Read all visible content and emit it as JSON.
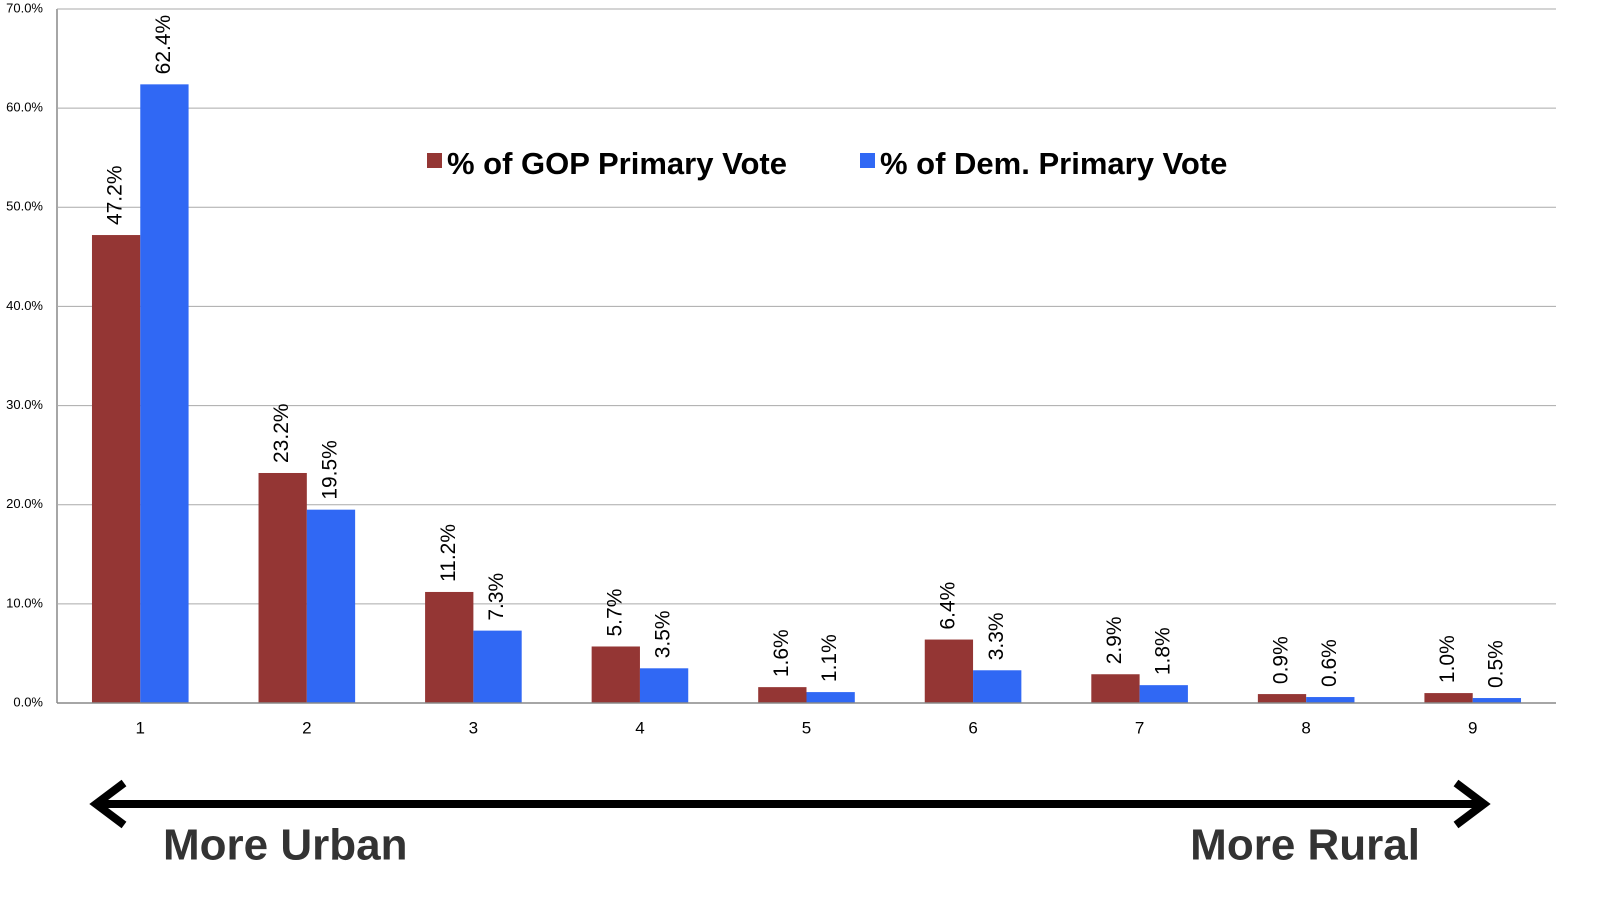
{
  "chart_data": {
    "type": "bar",
    "categories": [
      "1",
      "2",
      "3",
      "4",
      "5",
      "6",
      "7",
      "8",
      "9"
    ],
    "series": [
      {
        "name": "% of GOP Primary Vote",
        "color": "#943634",
        "values": [
          47.2,
          23.2,
          11.2,
          5.7,
          1.6,
          6.4,
          2.9,
          0.9,
          1.0
        ],
        "value_labels": [
          "47.2%",
          "23.2%",
          "11.2%",
          "5.7%",
          "1.6%",
          "6.4%",
          "2.9%",
          "0.9%",
          "1.0%"
        ]
      },
      {
        "name": "% of Dem. Primary Vote",
        "color": "#3068f4",
        "values": [
          62.4,
          19.5,
          7.3,
          3.5,
          1.1,
          3.3,
          1.8,
          0.6,
          0.5
        ],
        "value_labels": [
          "62.4%",
          "19.5%",
          "7.3%",
          "3.5%",
          "1.1%",
          "3.3%",
          "1.8%",
          "0.6%",
          "0.5%"
        ]
      }
    ],
    "ylim": [
      0,
      70
    ],
    "yticks": [
      {
        "value": 0,
        "label": "0.0%"
      },
      {
        "value": 10,
        "label": "10.0%"
      },
      {
        "value": 20,
        "label": "20.0%"
      },
      {
        "value": 30,
        "label": "30.0%"
      },
      {
        "value": 40,
        "label": "40.0%"
      },
      {
        "value": 50,
        "label": "50.0%"
      },
      {
        "value": 60,
        "label": "60.0%"
      },
      {
        "value": 70,
        "label": "70.0%"
      }
    ],
    "grid": true,
    "legend": "top",
    "annotations": [
      "More Urban",
      "More Rural"
    ]
  }
}
